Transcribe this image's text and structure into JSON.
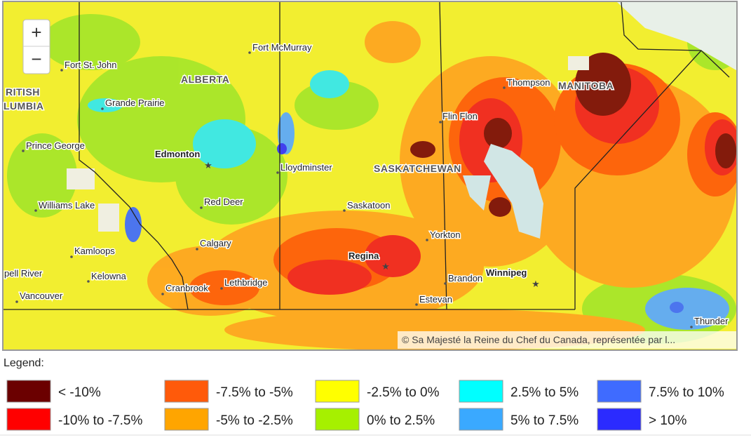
{
  "map": {
    "zoom_in": "+",
    "zoom_out": "−",
    "attribution": "© Sa Majesté la Reine du Chef du Canada, représentée par l...",
    "regions": [
      "ALBERTA",
      "SASKATCHEWAN",
      "MANITOBA",
      "RITISH",
      "LUMBIA"
    ],
    "places": [
      "Fort St. John",
      "Fort McMurray",
      "Grande Prairie",
      "Thompson",
      "Flin Flon",
      "Prince George",
      "Edmonton",
      "Lloydminster",
      "Red Deer",
      "Williams Lake",
      "Saskatoon",
      "Calgary",
      "Yorkton",
      "Kamloops",
      "Regina",
      "Kelowna",
      "Brandon",
      "Winnipeg",
      "Lethbridge",
      "Cranbrook",
      "Estevan",
      "Vancouver",
      "pell River",
      "Thunder"
    ]
  },
  "legend": {
    "title": "Legend:",
    "items": [
      {
        "label": "< -10%",
        "color": "#6b0000"
      },
      {
        "label": "-10% to -7.5%",
        "color": "#ff0000"
      },
      {
        "label": "-7.5% to -5%",
        "color": "#ff5a0a"
      },
      {
        "label": "-5% to -2.5%",
        "color": "#ffa500"
      },
      {
        "label": "-2.5% to 0%",
        "color": "#ffff00"
      },
      {
        "label": "0% to 2.5%",
        "color": "#a6f000"
      },
      {
        "label": "2.5% to 5%",
        "color": "#00ffff"
      },
      {
        "label": "5% to 7.5%",
        "color": "#3aa9ff"
      },
      {
        "label": "7.5% to 10%",
        "color": "#3f6bff"
      },
      {
        "label": "> 10%",
        "color": "#2b2bff"
      }
    ]
  }
}
